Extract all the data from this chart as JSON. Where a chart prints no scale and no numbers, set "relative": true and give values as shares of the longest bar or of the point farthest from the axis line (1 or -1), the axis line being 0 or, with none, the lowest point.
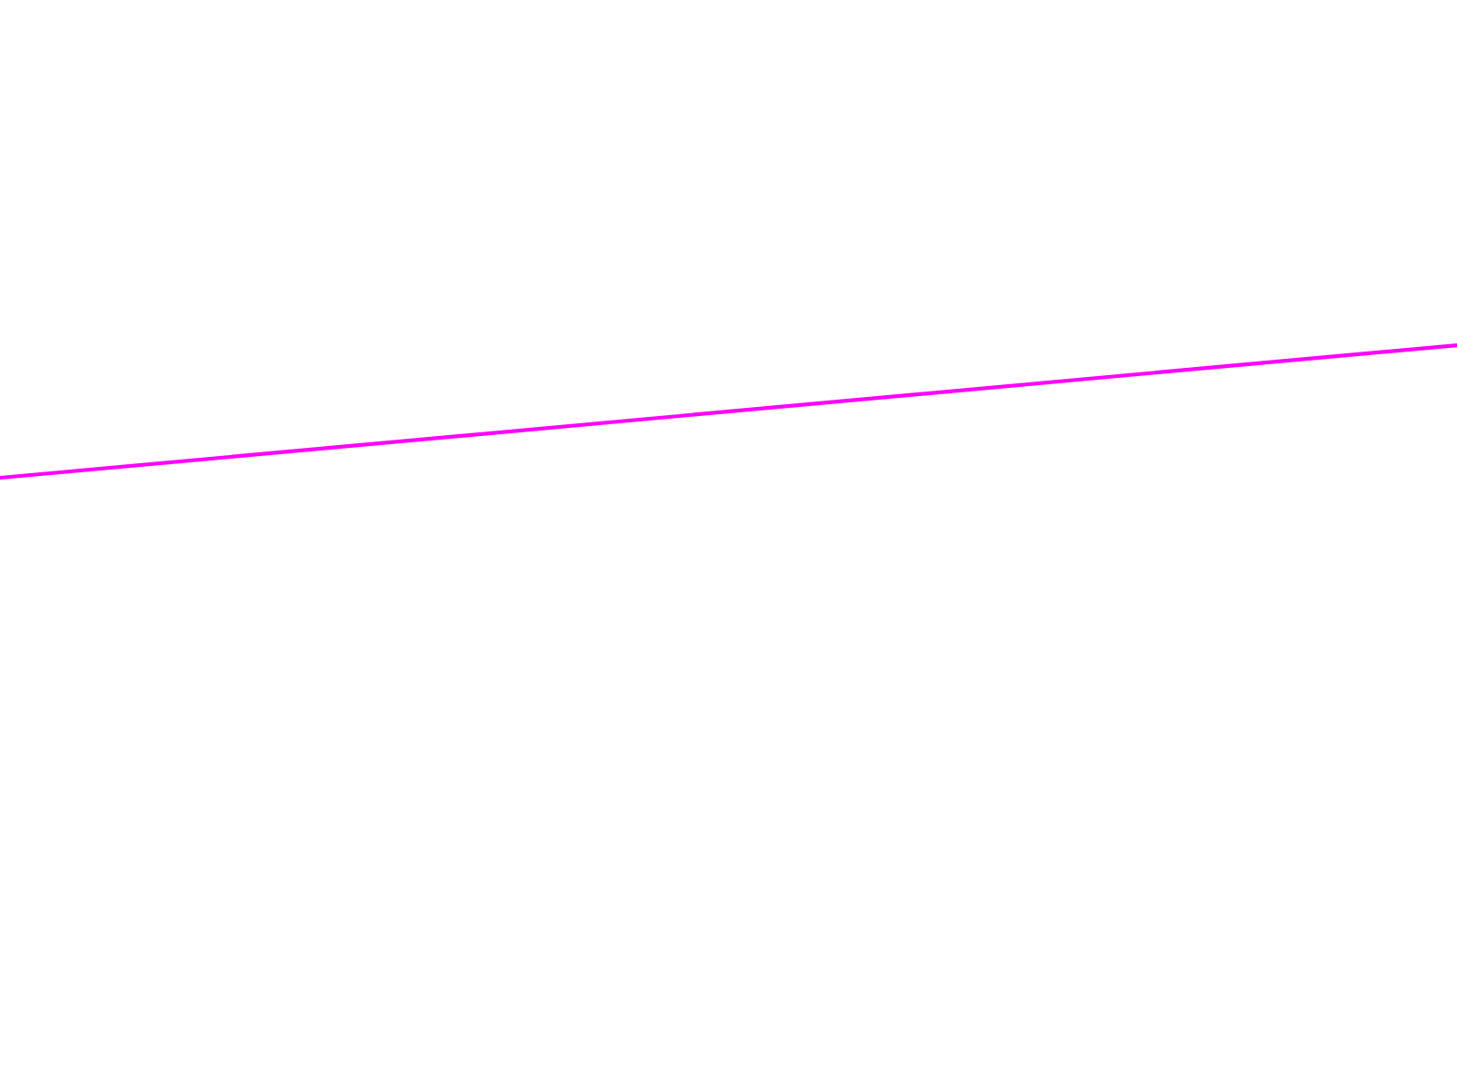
{
  "chart_data": {
    "type": "line",
    "relative": true,
    "categories": [
      null,
      null
    ],
    "series": [
      {
        "color": "#ff00ff",
        "values": [
          0,
          1
        ]
      }
    ]
  }
}
